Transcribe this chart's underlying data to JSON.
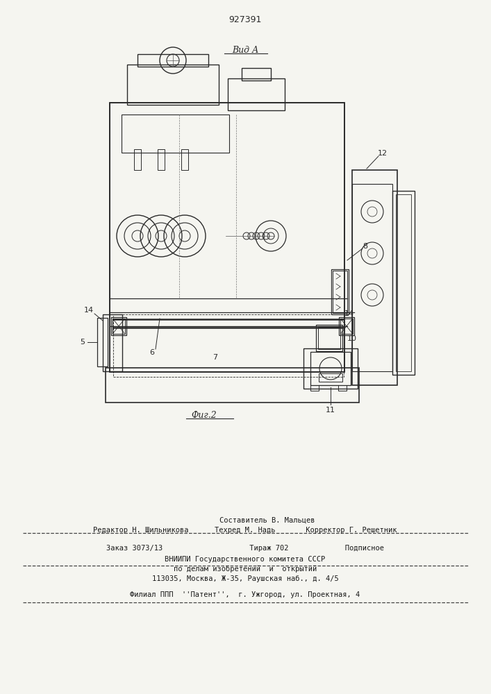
{
  "patent_number": "927391",
  "view_label": "Вид А",
  "fig_label": "Фиг.2",
  "background_color": "#f5f5f0",
  "line_color": "#2a2a2a",
  "footer_line1": "Составитель В. Мальцев",
  "footer_line2": "Редактор Н. Шильникова      Техред М. Надь       Корректор Г. Решетник",
  "footer_line3": "Заказ 3073/13                    Тираж 702             Подписное",
  "footer_line4": "ВНИИПИ Государственного комитета СССР",
  "footer_line5": "по делам изобретений  и  открытий",
  "footer_line6": "113035, Москва, Ж-35, Раушская наб., д. 4/5",
  "footer_line7": "Филиал ППП  ''Патент'',  г. Ужгород, ул. Проектная, 4"
}
